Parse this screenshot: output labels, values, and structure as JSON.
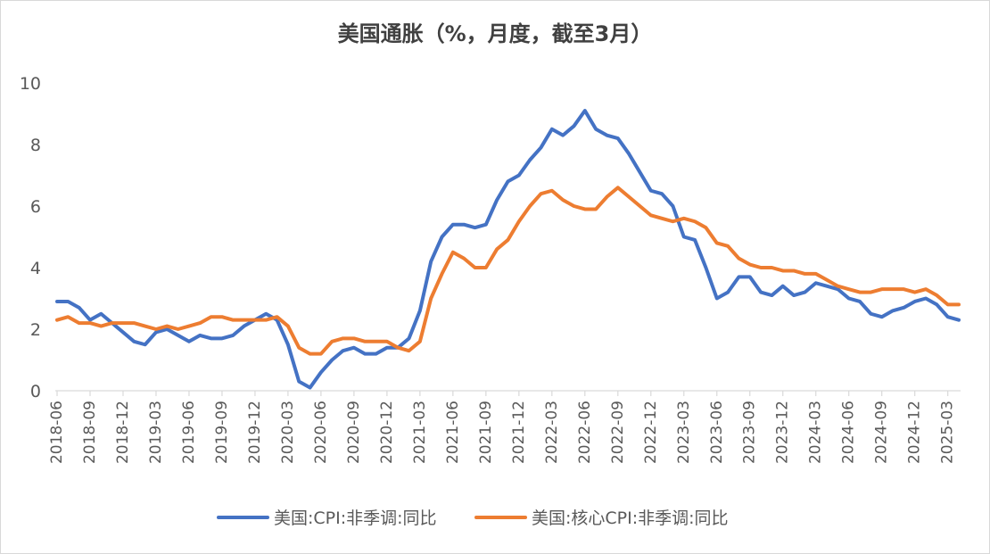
{
  "chart_data": {
    "type": "line",
    "title": "美国通胀（%，月度，截至3月）",
    "categories": [
      "2018-06",
      "2018-07",
      "2018-08",
      "2018-09",
      "2018-10",
      "2018-11",
      "2018-12",
      "2019-01",
      "2019-02",
      "2019-03",
      "2019-04",
      "2019-05",
      "2019-06",
      "2019-07",
      "2019-08",
      "2019-09",
      "2019-10",
      "2019-11",
      "2019-12",
      "2020-01",
      "2020-02",
      "2020-03",
      "2020-04",
      "2020-05",
      "2020-06",
      "2020-07",
      "2020-08",
      "2020-09",
      "2020-10",
      "2020-11",
      "2020-12",
      "2021-01",
      "2021-02",
      "2021-03",
      "2021-04",
      "2021-05",
      "2021-06",
      "2021-07",
      "2021-08",
      "2021-09",
      "2021-10",
      "2021-11",
      "2021-12",
      "2022-01",
      "2022-02",
      "2022-03",
      "2022-04",
      "2022-05",
      "2022-06",
      "2022-07",
      "2022-08",
      "2022-09",
      "2022-10",
      "2022-11",
      "2022-12",
      "2023-01",
      "2023-02",
      "2023-03",
      "2023-04",
      "2023-05",
      "2023-06",
      "2023-07",
      "2023-08",
      "2023-09",
      "2023-10",
      "2023-11",
      "2023-12",
      "2024-01",
      "2024-02",
      "2024-03",
      "2024-04",
      "2024-05",
      "2024-06",
      "2024-07",
      "2024-08",
      "2024-09",
      "2024-10",
      "2024-11",
      "2024-12",
      "2025-01",
      "2025-02",
      "2025-03",
      "2025-04"
    ],
    "xticks": [
      "2018-06",
      "2018-09",
      "2018-12",
      "2019-03",
      "2019-06",
      "2019-09",
      "2019-12",
      "2020-03",
      "2020-06",
      "2020-09",
      "2020-12",
      "2021-03",
      "2021-06",
      "2021-09",
      "2021-12",
      "2022-03",
      "2022-06",
      "2022-09",
      "2022-12",
      "2023-03",
      "2023-06",
      "2023-09",
      "2023-12",
      "2024-03",
      "2024-06",
      "2024-09",
      "2024-12",
      "2025-03"
    ],
    "yticks": [
      0,
      2,
      4,
      6,
      8,
      10
    ],
    "ylim": [
      0,
      10
    ],
    "grid": false,
    "legend": "bottom",
    "series": [
      {
        "name": "美国:CPI:非季调:同比",
        "color": "#4472C4",
        "values": [
          2.9,
          2.9,
          2.7,
          2.3,
          2.5,
          2.2,
          1.9,
          1.6,
          1.5,
          1.9,
          2.0,
          1.8,
          1.6,
          1.8,
          1.7,
          1.7,
          1.8,
          2.1,
          2.3,
          2.5,
          2.3,
          1.5,
          0.3,
          0.1,
          0.6,
          1.0,
          1.3,
          1.4,
          1.2,
          1.2,
          1.4,
          1.4,
          1.7,
          2.6,
          4.2,
          5.0,
          5.4,
          5.4,
          5.3,
          5.4,
          6.2,
          6.8,
          7.0,
          7.5,
          7.9,
          8.5,
          8.3,
          8.6,
          9.1,
          8.5,
          8.3,
          8.2,
          7.7,
          7.1,
          6.5,
          6.4,
          6.0,
          5.0,
          4.9,
          4.0,
          3.0,
          3.2,
          3.7,
          3.7,
          3.2,
          3.1,
          3.4,
          3.1,
          3.2,
          3.5,
          3.4,
          3.3,
          3.0,
          2.9,
          2.5,
          2.4,
          2.6,
          2.7,
          2.9,
          3.0,
          2.8,
          2.4,
          2.3
        ]
      },
      {
        "name": "美国:核心CPI:非季调:同比",
        "color": "#ED7D31",
        "values": [
          2.3,
          2.4,
          2.2,
          2.2,
          2.1,
          2.2,
          2.2,
          2.2,
          2.1,
          2.0,
          2.1,
          2.0,
          2.1,
          2.2,
          2.4,
          2.4,
          2.3,
          2.3,
          2.3,
          2.3,
          2.4,
          2.1,
          1.4,
          1.2,
          1.2,
          1.6,
          1.7,
          1.7,
          1.6,
          1.6,
          1.6,
          1.4,
          1.3,
          1.6,
          3.0,
          3.8,
          4.5,
          4.3,
          4.0,
          4.0,
          4.6,
          4.9,
          5.5,
          6.0,
          6.4,
          6.5,
          6.2,
          6.0,
          5.9,
          5.9,
          6.3,
          6.6,
          6.3,
          6.0,
          5.7,
          5.6,
          5.5,
          5.6,
          5.5,
          5.3,
          4.8,
          4.7,
          4.3,
          4.1,
          4.0,
          4.0,
          3.9,
          3.9,
          3.8,
          3.8,
          3.6,
          3.4,
          3.3,
          3.2,
          3.2,
          3.3,
          3.3,
          3.3,
          3.2,
          3.3,
          3.1,
          2.8,
          2.8
        ]
      }
    ]
  }
}
